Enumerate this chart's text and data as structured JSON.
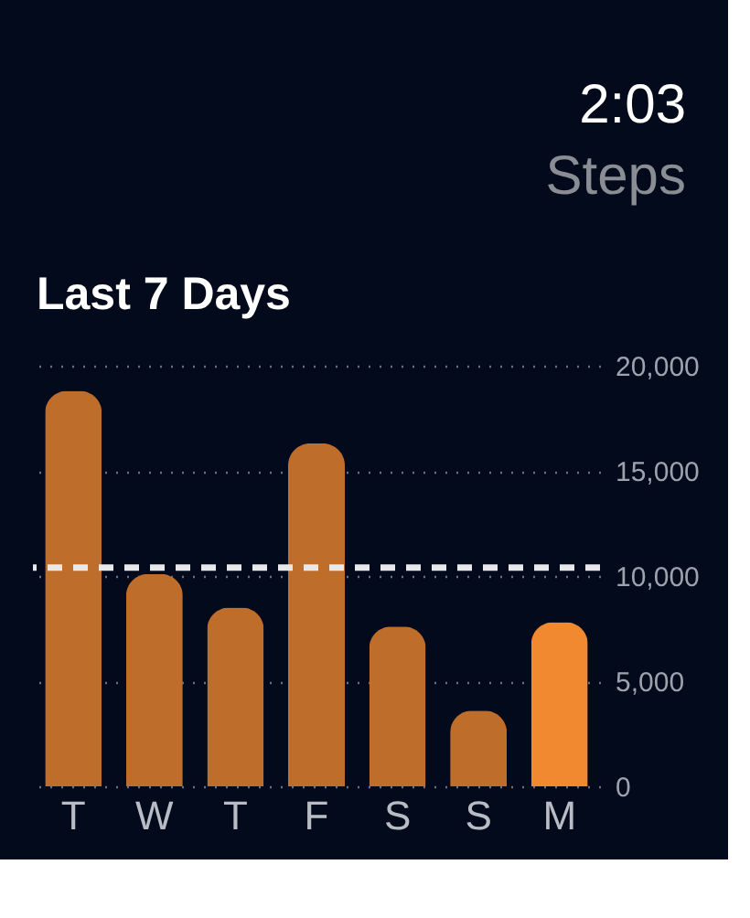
{
  "chart_data": {
    "type": "bar",
    "title": "Last 7 Days",
    "annotations": [
      "2:03",
      "Steps"
    ],
    "categories": [
      "T",
      "W",
      "T",
      "F",
      "S",
      "S",
      "M"
    ],
    "values": [
      18800,
      10100,
      8500,
      16300,
      7600,
      3600,
      7800
    ],
    "colors": [
      "#bf6d2a",
      "#bf6d2a",
      "#bf6d2a",
      "#bf6d2a",
      "#bf6d2a",
      "#bf6d2a",
      "#f0892f"
    ],
    "ylim": [
      0,
      20000
    ],
    "yticks": [
      0,
      {
        "value": 5000,
        "label": "5,000"
      },
      {
        "value": 10000,
        "label": "10,000"
      },
      {
        "value": 15000,
        "label": "15,000"
      },
      {
        "value": 20000,
        "label": "20,000"
      }
    ],
    "grid": "y",
    "ref_lines": [
      {
        "axis": "y",
        "value": 10400,
        "color": "#e8e8e8",
        "line_style": "dashed"
      }
    ]
  }
}
